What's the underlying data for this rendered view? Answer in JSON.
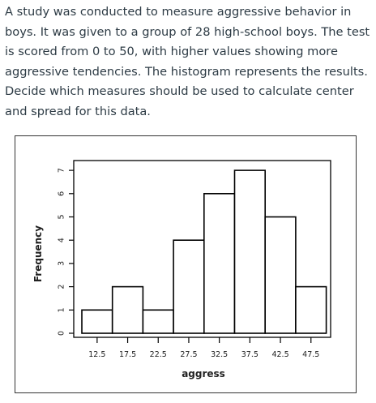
{
  "question": {
    "text": "A study was conducted to measure aggressive behavior in boys. It was given to a group of 28 high-school boys. The test is scored from 0 to 50, with higher values showing more aggressive tendencies. The histogram represents the results. Decide which measures should be used to calculate center and spread for this data."
  },
  "chart_data": {
    "type": "bar",
    "categories": [
      "12.5",
      "17.5",
      "22.5",
      "27.5",
      "32.5",
      "37.5",
      "42.5",
      "47.5"
    ],
    "values": [
      1,
      2,
      1,
      4,
      6,
      7,
      5,
      2
    ],
    "xlabel": "aggress",
    "ylabel": "Frequency",
    "yticks": [
      "0",
      "1",
      "2",
      "3",
      "4",
      "5",
      "6",
      "7"
    ],
    "ylim": [
      0,
      7
    ],
    "grid": false,
    "bar_color": "#ffffff",
    "edge_color": "#000000"
  }
}
